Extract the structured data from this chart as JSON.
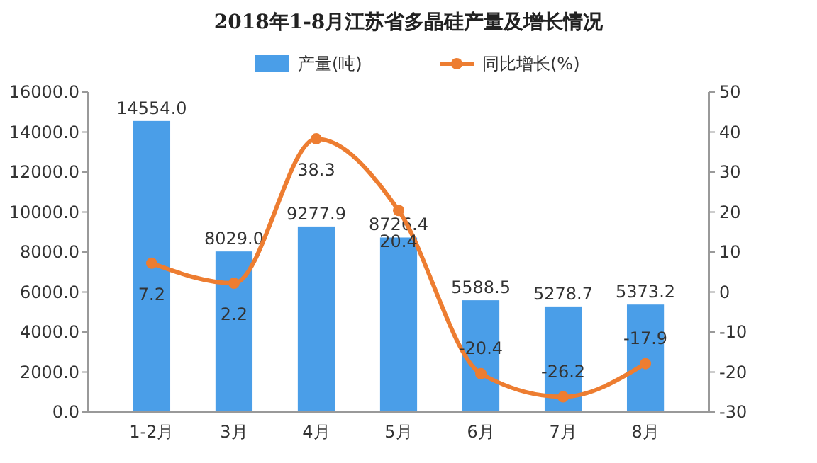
{
  "chart_data": {
    "type": "bar",
    "title": "2018年1-8月江苏省多晶硅产量及增长情况",
    "categories": [
      "1-2月",
      "3月",
      "4月",
      "5月",
      "6月",
      "7月",
      "8月"
    ],
    "series": [
      {
        "name": "产量(吨)",
        "color": "#4a9ee8",
        "values": [
          14554.0,
          8029.0,
          9277.9,
          8726.4,
          5588.5,
          5278.7,
          5373.2
        ],
        "value_labels": [
          "14554.0",
          "8029.0",
          "9277.9",
          "8726.4",
          "5588.5",
          "5278.7",
          "5373.2"
        ]
      },
      {
        "name": "同比增长(%)",
        "type": "line",
        "axis": "y2",
        "color": "#ed7d31",
        "values": [
          7.2,
          2.2,
          38.3,
          20.4,
          -20.4,
          -26.2,
          -17.9
        ],
        "value_labels": [
          "7.2",
          "2.2",
          "38.3",
          "20.4",
          "-20.4",
          "-26.2",
          "-17.9"
        ]
      }
    ],
    "ylim": [
      0,
      16000
    ],
    "yticks": [
      {
        "value": 0,
        "label": "0.0"
      },
      {
        "value": 2000,
        "label": "2000.0"
      },
      {
        "value": 4000,
        "label": "4000.0"
      },
      {
        "value": 6000,
        "label": "6000.0"
      },
      {
        "value": 8000,
        "label": "8000.0"
      },
      {
        "value": 10000,
        "label": "10000.0"
      },
      {
        "value": 12000,
        "label": "12000.0"
      },
      {
        "value": 14000,
        "label": "14000.0"
      },
      {
        "value": 16000,
        "label": "16000.0"
      }
    ],
    "y2lim": [
      -30,
      50
    ],
    "y2ticks": [
      -30,
      -20,
      -10,
      0,
      10,
      20,
      30,
      40,
      50
    ],
    "legend": "top",
    "marker": "circle"
  }
}
